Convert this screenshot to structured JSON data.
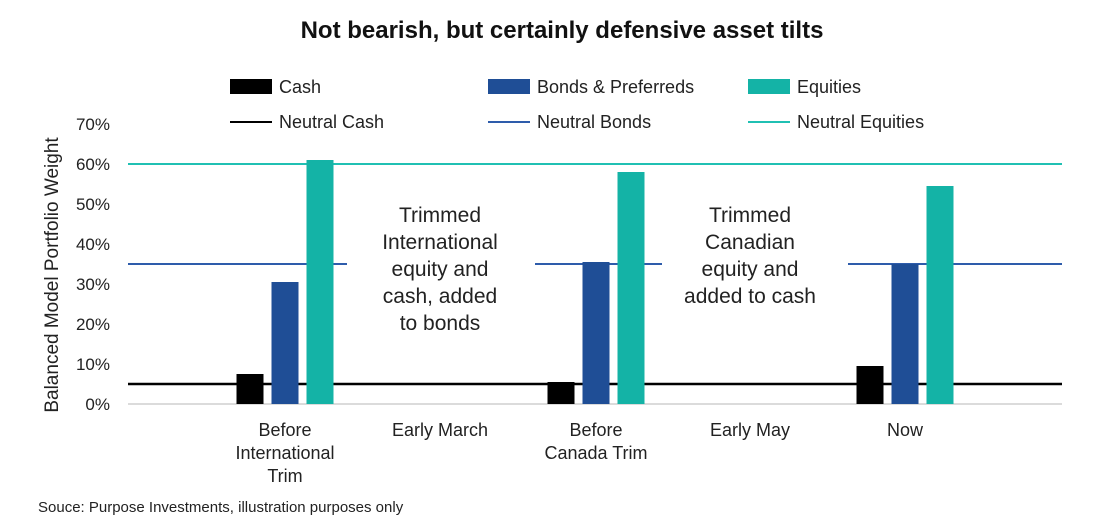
{
  "chart_data": {
    "type": "bar",
    "title": "Not bearish, but certainly defensive asset tilts",
    "ylabel": "Balanced Model Portfolio Weight",
    "ylim": [
      0,
      70
    ],
    "yticks": [
      "0%",
      "10%",
      "20%",
      "30%",
      "40%",
      "50%",
      "60%",
      "70%"
    ],
    "categories": [
      [
        "Before",
        "International",
        "Trim"
      ],
      [
        "Early March"
      ],
      [
        "Before",
        "Canada Trim"
      ],
      [
        "Early May"
      ],
      [
        "Now"
      ]
    ],
    "series": [
      {
        "name": "Cash",
        "color": "#000000",
        "values": [
          7.5,
          null,
          5.5,
          null,
          9.5
        ]
      },
      {
        "name": "Bonds & Preferreds",
        "color": "#1f4e96",
        "values": [
          30.5,
          null,
          35.5,
          null,
          35
        ]
      },
      {
        "name": "Equities",
        "color": "#14b3a6",
        "values": [
          61,
          null,
          58,
          null,
          54.5
        ]
      }
    ],
    "reference_lines": [
      {
        "name": "Neutral Cash",
        "color": "#000000",
        "value": 5,
        "span": "full"
      },
      {
        "name": "Neutral Bonds",
        "color": "#2e5cab",
        "value": 35,
        "span": "segments"
      },
      {
        "name": "Neutral Equities",
        "color": "#20c0b3",
        "value": 60,
        "span": "full"
      }
    ],
    "annotations": [
      {
        "category_index": 1,
        "lines": [
          "Trimmed",
          "International",
          "equity and",
          "cash, added",
          "to bonds"
        ]
      },
      {
        "category_index": 3,
        "lines": [
          "Trimmed",
          "Canadian",
          "equity and",
          "added to cash"
        ]
      }
    ],
    "legend": "top",
    "grid": false,
    "source": "Souce: Purpose Investments, illustration purposes only"
  }
}
